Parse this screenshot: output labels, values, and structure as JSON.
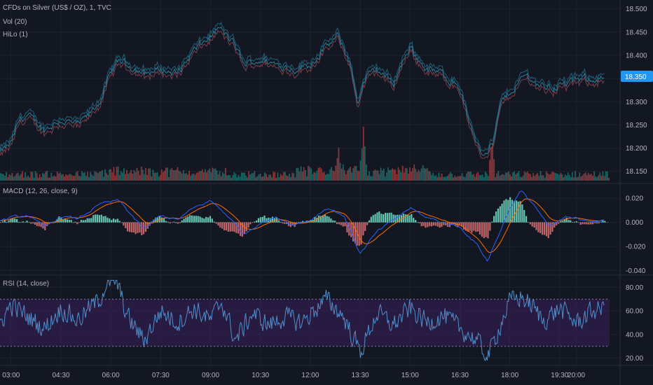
{
  "header": {
    "symbol": "CFDs on Silver (US$ / OZ), 1, TVC",
    "indicators": [
      "Vol (20)",
      "HiLo (1)"
    ]
  },
  "panes": {
    "macd_label": "MACD (12, 26, close, 9)",
    "rsi_label": "RSI (14, close)"
  },
  "price_badge": "18.350",
  "colors": {
    "background": "#131722",
    "grid": "#1e222d",
    "price_line": "#2f7f96",
    "hi_line": "#1f5f7a",
    "lo_line": "#7b3e4a",
    "vol_up": "#26a69a",
    "vol_down": "#ef5350",
    "macd_line": "#2962ff",
    "signal_line": "#ff6d00",
    "hist_up": "#80ffe0",
    "hist_down": "#ff8080",
    "rsi_line": "#4f8fcc",
    "rsi_band": "#3b1f5c",
    "badge": "#2196f3"
  },
  "chart_data": [
    {
      "type": "line",
      "pane": "price",
      "yticks": [
        "18.500",
        "18.450",
        "18.400",
        "18.350",
        "18.300",
        "18.250",
        "18.200",
        "18.150"
      ],
      "ylim": [
        18.13,
        18.51
      ],
      "last_value": 18.35,
      "x_range": [
        "02:40",
        "21:00"
      ],
      "series_keypoints": [
        [
          "02:40",
          18.19
        ],
        [
          "03:00",
          18.21
        ],
        [
          "03:15",
          18.26
        ],
        [
          "03:30",
          18.27
        ],
        [
          "04:00",
          18.24
        ],
        [
          "04:30",
          18.26
        ],
        [
          "05:00",
          18.25
        ],
        [
          "05:20",
          18.27
        ],
        [
          "05:40",
          18.3
        ],
        [
          "06:00",
          18.36
        ],
        [
          "06:15",
          18.39
        ],
        [
          "06:30",
          18.38
        ],
        [
          "07:00",
          18.36
        ],
        [
          "07:30",
          18.37
        ],
        [
          "08:00",
          18.36
        ],
        [
          "08:30",
          18.41
        ],
        [
          "09:00",
          18.44
        ],
        [
          "09:15",
          18.46
        ],
        [
          "09:45",
          18.42
        ],
        [
          "10:00",
          18.38
        ],
        [
          "10:30",
          18.39
        ],
        [
          "11:00",
          18.38
        ],
        [
          "11:30",
          18.37
        ],
        [
          "12:00",
          18.38
        ],
        [
          "12:30",
          18.42
        ],
        [
          "12:50",
          18.44
        ],
        [
          "13:10",
          18.39
        ],
        [
          "13:25",
          18.3
        ],
        [
          "13:40",
          18.35
        ],
        [
          "14:00",
          18.37
        ],
        [
          "14:30",
          18.34
        ],
        [
          "15:00",
          18.42
        ],
        [
          "15:15",
          18.39
        ],
        [
          "15:30",
          18.37
        ],
        [
          "16:00",
          18.36
        ],
        [
          "16:30",
          18.33
        ],
        [
          "16:50",
          18.24
        ],
        [
          "17:10",
          18.19
        ],
        [
          "17:30",
          18.21
        ],
        [
          "17:45",
          18.3
        ],
        [
          "18:00",
          18.32
        ],
        [
          "18:15",
          18.34
        ],
        [
          "18:30",
          18.36
        ],
        [
          "18:45",
          18.34
        ],
        [
          "19:15",
          18.33
        ],
        [
          "19:45",
          18.34
        ],
        [
          "20:15",
          18.35
        ],
        [
          "20:50",
          18.35
        ]
      ]
    },
    {
      "type": "bar",
      "pane": "volume",
      "description_of_values": "relative volume",
      "spikes": [
        [
          "13:30",
          1.0
        ],
        [
          "17:20",
          0.85
        ],
        [
          "12:45",
          0.55
        ]
      ]
    },
    {
      "type": "line",
      "pane": "macd",
      "yticks": [
        "0.020",
        "0.000",
        "-0.020",
        "-0.040"
      ],
      "ylim": [
        -0.042,
        0.03
      ],
      "series_keypoints": [
        [
          "02:40",
          0.001
        ],
        [
          "03:00",
          0.004
        ],
        [
          "03:30",
          0.006
        ],
        [
          "04:00",
          -0.004
        ],
        [
          "04:30",
          0.005
        ],
        [
          "05:00",
          0.003
        ],
        [
          "05:45",
          0.016
        ],
        [
          "06:15",
          0.018
        ],
        [
          "06:30",
          0.01
        ],
        [
          "07:00",
          -0.006
        ],
        [
          "07:30",
          0.006
        ],
        [
          "08:00",
          0.002
        ],
        [
          "08:30",
          0.012
        ],
        [
          "09:00",
          0.018
        ],
        [
          "09:30",
          0.006
        ],
        [
          "10:00",
          -0.01
        ],
        [
          "10:30",
          0.0
        ],
        [
          "11:00",
          0.004
        ],
        [
          "11:30",
          -0.002
        ],
        [
          "12:00",
          0.002
        ],
        [
          "12:30",
          0.012
        ],
        [
          "13:00",
          0.006
        ],
        [
          "13:30",
          -0.026
        ],
        [
          "14:00",
          -0.008
        ],
        [
          "14:30",
          0.002
        ],
        [
          "15:00",
          0.012
        ],
        [
          "15:30",
          0.004
        ],
        [
          "16:00",
          0.0
        ],
        [
          "16:30",
          -0.004
        ],
        [
          "17:00",
          -0.018
        ],
        [
          "17:20",
          -0.032
        ],
        [
          "17:40",
          -0.01
        ],
        [
          "18:00",
          0.012
        ],
        [
          "18:20",
          0.026
        ],
        [
          "18:45",
          0.014
        ],
        [
          "19:10",
          -0.004
        ],
        [
          "19:40",
          0.004
        ],
        [
          "20:20",
          0.002
        ],
        [
          "20:50",
          0.001
        ]
      ]
    },
    {
      "type": "line",
      "pane": "rsi",
      "yticks": [
        "80.00",
        "60.00",
        "40.00",
        "20.00"
      ],
      "ylim": [
        15,
        88
      ],
      "band": [
        30,
        70
      ],
      "series_keypoints": [
        [
          "02:40",
          50
        ],
        [
          "03:00",
          65
        ],
        [
          "03:30",
          55
        ],
        [
          "04:00",
          45
        ],
        [
          "04:30",
          62
        ],
        [
          "05:00",
          52
        ],
        [
          "05:40",
          70
        ],
        [
          "05:50",
          82
        ],
        [
          "06:10",
          85
        ],
        [
          "06:30",
          55
        ],
        [
          "07:00",
          35
        ],
        [
          "07:30",
          60
        ],
        [
          "08:00",
          50
        ],
        [
          "08:30",
          62
        ],
        [
          "09:00",
          52
        ],
        [
          "09:20",
          68
        ],
        [
          "09:45",
          35
        ],
        [
          "10:15",
          58
        ],
        [
          "10:45",
          48
        ],
        [
          "11:15",
          55
        ],
        [
          "11:45",
          50
        ],
        [
          "12:10",
          62
        ],
        [
          "12:30",
          70
        ],
        [
          "13:00",
          55
        ],
        [
          "13:30",
          25
        ],
        [
          "14:00",
          58
        ],
        [
          "14:30",
          48
        ],
        [
          "15:00",
          62
        ],
        [
          "15:30",
          50
        ],
        [
          "16:00",
          56
        ],
        [
          "16:30",
          45
        ],
        [
          "17:00",
          35
        ],
        [
          "17:20",
          20
        ],
        [
          "17:40",
          45
        ],
        [
          "18:00",
          68
        ],
        [
          "18:20",
          72
        ],
        [
          "18:40",
          64
        ],
        [
          "19:00",
          52
        ],
        [
          "19:30",
          62
        ],
        [
          "20:00",
          50
        ],
        [
          "20:30",
          60
        ],
        [
          "20:50",
          62
        ]
      ]
    }
  ],
  "time_axis": [
    "03:00",
    "04:30",
    "06:00",
    "07:30",
    "09:00",
    "10:30",
    "12:00",
    "13:30",
    "15:00",
    "16:30",
    "18:00",
    "19:30",
    "20:00"
  ]
}
